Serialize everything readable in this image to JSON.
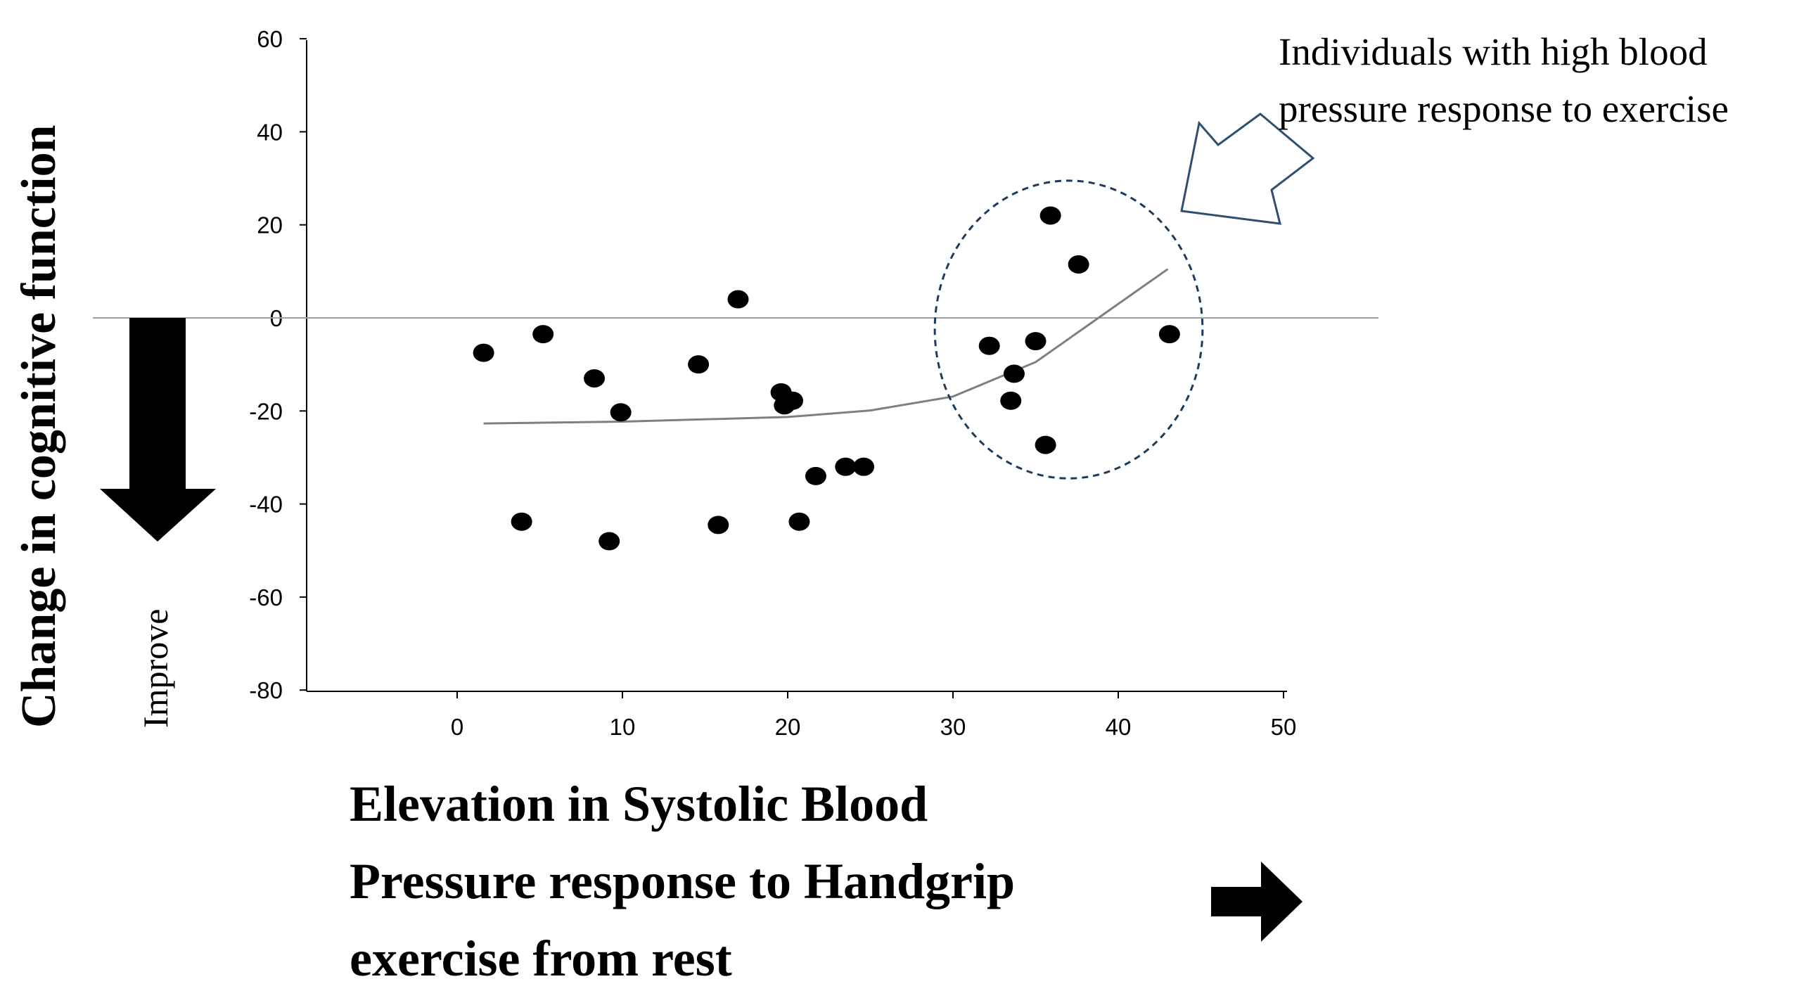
{
  "chart_data": {
    "type": "scatter",
    "title": "",
    "xlabel_lines": [
      "Elevation in Systolic Blood",
      "Pressure response to Handgrip",
      "exercise from rest"
    ],
    "ylabel": "Change in cognitive function",
    "xlim": [
      -9,
      50
    ],
    "ylim": [
      -80,
      60
    ],
    "x_ticks": [
      0,
      10,
      20,
      30,
      40,
      50
    ],
    "y_ticks": [
      60,
      40,
      20,
      0,
      -20,
      -40,
      -60,
      -80
    ],
    "zero_reference_line": true,
    "grid": false,
    "points": [
      {
        "x": 1.6,
        "y": -7.5
      },
      {
        "x": 5.2,
        "y": -3.5
      },
      {
        "x": 8.3,
        "y": -13
      },
      {
        "x": 9.9,
        "y": -20.3
      },
      {
        "x": 3.9,
        "y": -43.8
      },
      {
        "x": 9.2,
        "y": -48
      },
      {
        "x": 14.6,
        "y": -10
      },
      {
        "x": 15.8,
        "y": -44.5
      },
      {
        "x": 17.0,
        "y": 4
      },
      {
        "x": 19.6,
        "y": -16
      },
      {
        "x": 19.8,
        "y": -18.8
      },
      {
        "x": 20.3,
        "y": -17.8
      },
      {
        "x": 20.7,
        "y": -43.8
      },
      {
        "x": 21.7,
        "y": -34
      },
      {
        "x": 23.5,
        "y": -32
      },
      {
        "x": 24.6,
        "y": -32
      },
      {
        "x": 32.2,
        "y": -6
      },
      {
        "x": 33.5,
        "y": -17.8
      },
      {
        "x": 33.7,
        "y": -12
      },
      {
        "x": 35.0,
        "y": -5
      },
      {
        "x": 35.6,
        "y": -27.3
      },
      {
        "x": 35.9,
        "y": 22
      },
      {
        "x": 37.6,
        "y": 11.5
      },
      {
        "x": 43.1,
        "y": -3.5
      }
    ],
    "trendline": {
      "type": "exponential",
      "points": [
        {
          "x": 1.6,
          "y": -22.7
        },
        {
          "x": 10,
          "y": -22.3
        },
        {
          "x": 20,
          "y": -21.3
        },
        {
          "x": 25,
          "y": -19.9
        },
        {
          "x": 30,
          "y": -16.9
        },
        {
          "x": 35,
          "y": -9.5
        },
        {
          "x": 38,
          "y": -2.0
        },
        {
          "x": 40,
          "y": 3.0
        },
        {
          "x": 43,
          "y": 10.5
        }
      ]
    },
    "highlight_ellipse": {
      "cx": 37,
      "cy": -2.5,
      "rx": 8.1,
      "ry": 32
    }
  },
  "annotations": {
    "callout_lines": [
      "Individuals with high blood",
      "pressure response to exercise"
    ],
    "improve_label": "Improve"
  },
  "colors": {
    "points": "#000000",
    "trendline": "#7f7f7f",
    "ellipse": "#1f3b5c",
    "callout_arrow": "#2e4f6e",
    "arrows": "#000000"
  }
}
